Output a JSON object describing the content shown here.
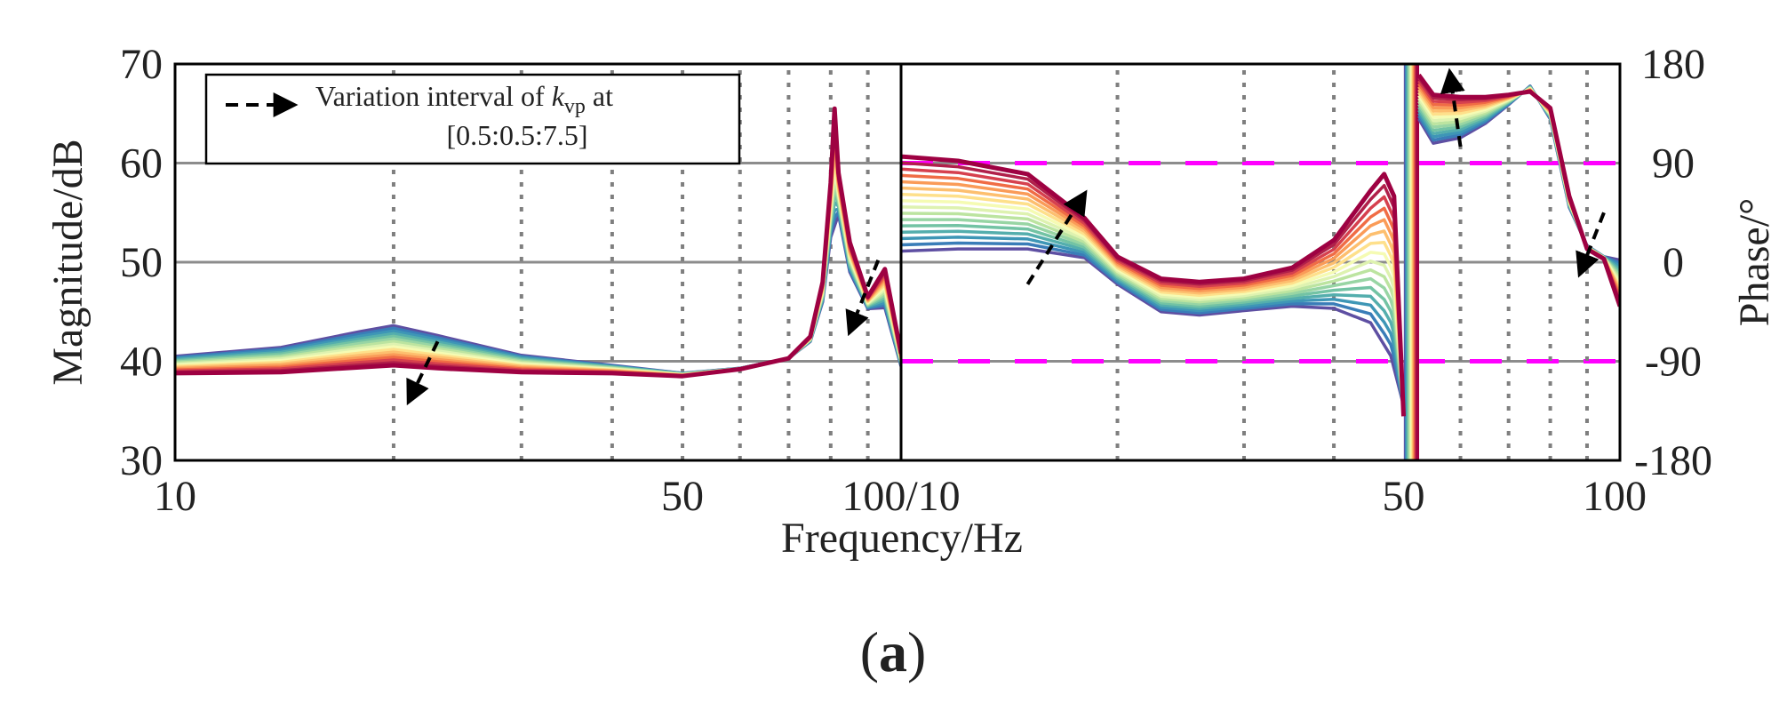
{
  "figure": {
    "panel_label": "(a)",
    "panel_label_letter": "a",
    "xlabel": "Frequency/Hz",
    "legend": {
      "text_line1_prefix": "Variation interval of ",
      "symbol": "k",
      "symbol_subscript": "vp",
      "text_line1_suffix": " at",
      "text_line2": "[0.5:0.5:7.5]"
    }
  },
  "colors": {
    "axes": "#000000",
    "grid_solid": "#8c8c8c",
    "grid_dotted": "#7f7f7f",
    "phase_limit": "#ff00ff",
    "arrow": "#000000",
    "palette": [
      "#5e4fa2",
      "#3a7db8",
      "#3e96b6",
      "#54aead",
      "#73c3a4",
      "#98d5a4",
      "#bce4a0",
      "#def2b0",
      "#f5fbb3",
      "#fee08b",
      "#fdbf6f",
      "#fa9b58",
      "#f06c45",
      "#d6404e",
      "#b0204a",
      "#9e0142"
    ]
  },
  "chart_data": [
    {
      "id": "magnitude",
      "type": "line",
      "x_scale": "log",
      "xlim": [
        10,
        100
      ],
      "ylim": [
        30,
        70
      ],
      "ylabel": "Magnitude/dB",
      "xticks": [
        10,
        50,
        100
      ],
      "xtick_labels": [
        "10",
        "50",
        "100/10"
      ],
      "yticks": [
        30,
        40,
        50,
        60,
        70
      ],
      "ytick_labels": [
        "30",
        "40",
        "50",
        "60",
        "70"
      ],
      "solid_grid_y": [
        40,
        50,
        60
      ],
      "dotted_grid_x": [
        20,
        30,
        40,
        50,
        60,
        70,
        80,
        90
      ],
      "k_vp": [
        0.5,
        1.0,
        1.5,
        2.0,
        2.5,
        3.0,
        3.5,
        4.0,
        4.5,
        5.0,
        5.5,
        6.0,
        6.5,
        7.0,
        7.5
      ],
      "series_note": "one curve per k_vp value; first (0.5) and last (7.5) shown",
      "series": [
        {
          "name": "k_vp=0.5",
          "x": [
            10,
            14,
            18,
            20,
            23,
            30,
            40,
            50,
            60,
            70,
            75,
            78,
            80,
            82,
            85,
            90,
            95,
            100
          ],
          "y": [
            40.5,
            41.4,
            43.0,
            43.6,
            42.6,
            40.6,
            39.6,
            38.8,
            39.3,
            40.3,
            42.0,
            46.0,
            52.5,
            54.8,
            49.0,
            45.3,
            45.4,
            39.5
          ]
        },
        {
          "name": "k_vp=7.5",
          "x": [
            10,
            14,
            18,
            20,
            23,
            30,
            40,
            50,
            60,
            70,
            75,
            78,
            80,
            81,
            82,
            85,
            90,
            95,
            100
          ],
          "y": [
            38.8,
            38.9,
            39.4,
            39.6,
            39.3,
            38.9,
            38.8,
            38.5,
            39.2,
            40.3,
            42.5,
            48.0,
            58.0,
            65.5,
            59.0,
            52.0,
            46.5,
            49.3,
            40.8
          ]
        }
      ],
      "annotations": [
        {
          "type": "arrow",
          "from": [
            23,
            42.0
          ],
          "to": [
            21,
            36.0
          ],
          "meaning": "increasing k_vp"
        },
        {
          "type": "arrow",
          "from": [
            93,
            50.2
          ],
          "to": [
            85,
            43.0
          ],
          "meaning": "increasing k_vp"
        }
      ]
    },
    {
      "id": "phase",
      "type": "line",
      "x_scale": "log",
      "xlim": [
        10,
        100
      ],
      "ylim": [
        -180,
        180
      ],
      "ylabel": "Phase/°",
      "xticks": [
        50,
        100
      ],
      "xtick_labels": [
        "50",
        "100"
      ],
      "yticks": [
        180,
        90,
        0,
        -90,
        -180
      ],
      "ytick_labels": [
        "180",
        "90",
        "0",
        "-90",
        "-180"
      ],
      "solid_grid_y": [
        0,
        -90,
        90
      ],
      "limit_lines_y": [
        90,
        -90
      ],
      "dotted_grid_x": [
        20,
        30,
        40,
        60,
        70,
        80,
        90
      ],
      "k_vp": [
        0.5,
        1.0,
        1.5,
        2.0,
        2.5,
        3.0,
        3.5,
        4.0,
        4.5,
        5.0,
        5.5,
        6.0,
        6.5,
        7.0,
        7.5
      ],
      "series_note": "one curve per k_vp value; first (0.5) and last (7.5) shown",
      "series": [
        {
          "name": "k_vp=0.5",
          "segments": [
            {
              "x": [
                10,
                12,
                15,
                18,
                20,
                23,
                26,
                30,
                35,
                40,
                45,
                48,
                50
              ],
              "y": [
                10,
                12,
                12,
                4,
                -20,
                -45,
                -48,
                -44,
                -40,
                -42,
                -55,
                -85,
                -130
              ]
            },
            {
              "x": [
                52.5,
                55,
                60,
                65,
                70,
                75,
                80,
                85,
                90,
                95,
                100
              ],
              "y": [
                130,
                108,
                113,
                126,
                143,
                160,
                130,
                50,
                15,
                5,
                2
              ]
            }
          ]
        },
        {
          "name": "k_vp=7.5",
          "segments": [
            {
              "x": [
                10,
                12,
                15,
                18,
                20,
                23,
                26,
                30,
                35,
                40,
                45,
                47,
                48.5,
                50
              ],
              "y": [
                96,
                92,
                80,
                40,
                5,
                -15,
                -18,
                -15,
                -5,
                20,
                65,
                80,
                60,
                -140
              ]
            },
            {
              "x": [
                52.5,
                55,
                60,
                65,
                70,
                75,
                80,
                85,
                90,
                95,
                100
              ],
              "y": [
                170,
                152,
                150,
                150,
                152,
                155,
                140,
                60,
                12,
                3,
                -40
              ]
            }
          ]
        }
      ],
      "annotations": [
        {
          "type": "arrow",
          "from": [
            15,
            -20
          ],
          "to": [
            18,
            62
          ],
          "meaning": "increasing k_vp"
        },
        {
          "type": "arrow",
          "from": [
            60,
            105
          ],
          "to": [
            58,
            172
          ],
          "meaning": "increasing k_vp"
        },
        {
          "type": "arrow",
          "from": [
            95,
            45
          ],
          "to": [
            88,
            -10
          ],
          "meaning": "increasing k_vp"
        }
      ]
    }
  ]
}
